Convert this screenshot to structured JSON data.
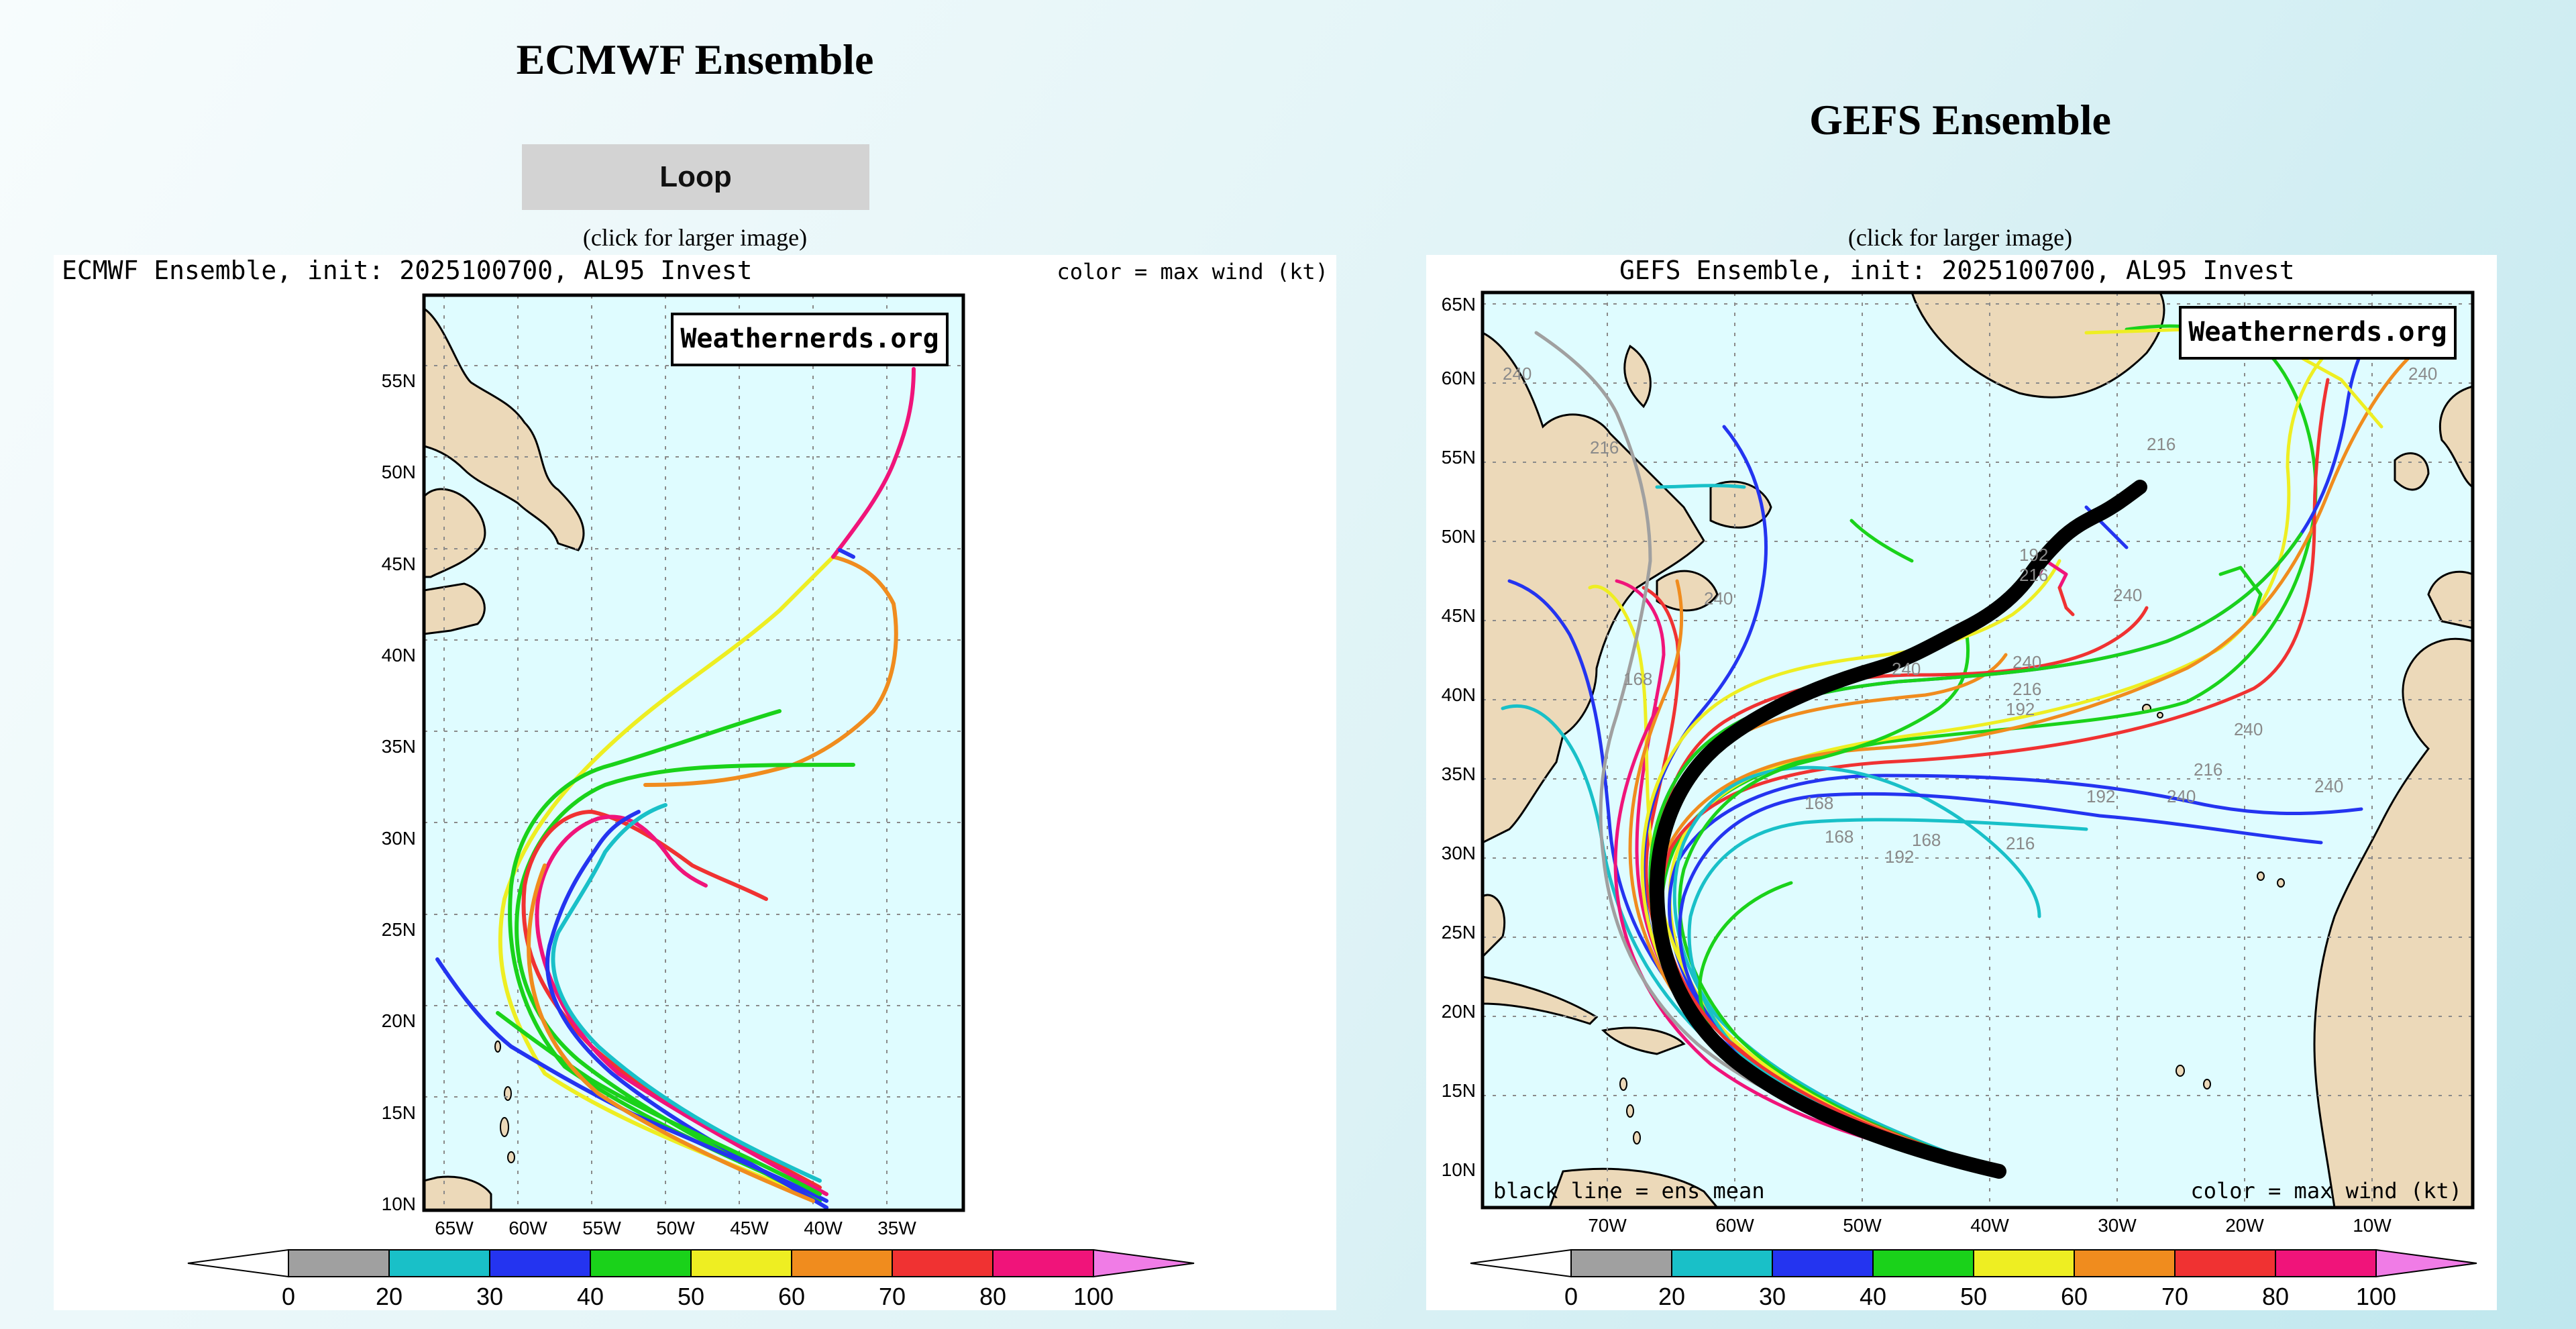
{
  "left": {
    "heading": "ECMWF Ensemble",
    "loop_label": "Loop",
    "click_note": "(click for larger image)",
    "map_title": "ECMWF Ensemble, init: 2025100700, AL95 Invest",
    "legend_caption": "color = max wind (kt)",
    "watermark": "Weathernerds.org",
    "lat_labels": [
      "10N",
      "15N",
      "20N",
      "25N",
      "30N",
      "35N",
      "40N",
      "45N",
      "50N",
      "55N"
    ],
    "lon_labels": [
      "65W",
      "60W",
      "55W",
      "50W",
      "45W",
      "40W",
      "35W"
    ],
    "colorbar_ticks": [
      "0",
      "20",
      "30",
      "40",
      "50",
      "60",
      "70",
      "80",
      "100"
    ]
  },
  "right": {
    "heading": "GEFS Ensemble",
    "click_note": "(click for larger image)",
    "map_title": "GEFS Ensemble, init: 2025100700, AL95 Invest",
    "watermark": "Weathernerds.org",
    "bottom_left_note": "black line = ens mean",
    "bottom_right_note": "color = max wind (kt)",
    "lat_labels": [
      "10N",
      "15N",
      "20N",
      "25N",
      "30N",
      "35N",
      "40N",
      "45N",
      "50N",
      "55N",
      "60N",
      "65N"
    ],
    "lon_labels": [
      "70W",
      "60W",
      "50W",
      "40W",
      "30W",
      "20W",
      "10W"
    ],
    "colorbar_ticks": [
      "0",
      "20",
      "30",
      "40",
      "50",
      "60",
      "70",
      "80",
      "100"
    ],
    "hour_labels": [
      "240",
      "216",
      "240",
      "216",
      "192",
      "216",
      "240",
      "168",
      "240",
      "240",
      "216",
      "192",
      "240",
      "240",
      "240",
      "216",
      "192",
      "168",
      "168",
      "192",
      "216",
      "240",
      "168"
    ]
  },
  "colorbar_colors": [
    "#a0a0a0",
    "#19c0c8",
    "#2434f0",
    "#1ad21a",
    "#eeee22",
    "#f08c1e",
    "#f03232",
    "#f0147a"
  ],
  "colorbar_end_high": "#f07ce6",
  "map_colors": {
    "ocean": "#dffcff",
    "land": "#ecd9b9",
    "grid": "#8a8a8a",
    "coast": "#000000"
  }
}
